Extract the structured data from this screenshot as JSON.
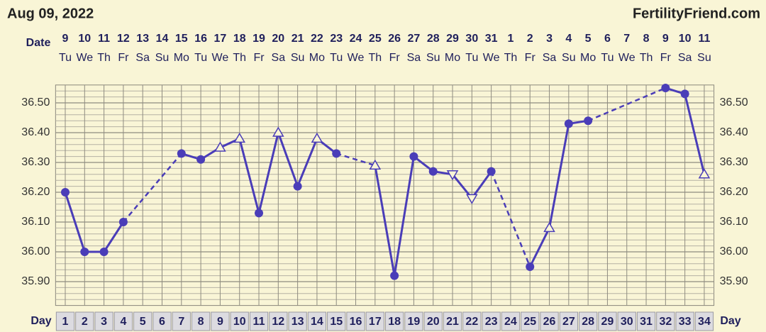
{
  "chart_data": {
    "type": "line",
    "title": "Aug 09, 2022",
    "site": "FertilityFriend.com",
    "date_label": "Date",
    "day_label": "Day",
    "dates": [
      "9",
      "10",
      "11",
      "12",
      "13",
      "14",
      "15",
      "16",
      "17",
      "18",
      "19",
      "20",
      "21",
      "22",
      "23",
      "24",
      "25",
      "26",
      "27",
      "28",
      "29",
      "30",
      "31",
      "1",
      "2",
      "3",
      "4",
      "5",
      "6",
      "7",
      "8",
      "9",
      "10",
      "11"
    ],
    "weekdays": [
      "Tu",
      "We",
      "Th",
      "Fr",
      "Sa",
      "Su",
      "Mo",
      "Tu",
      "We",
      "Th",
      "Fr",
      "Sa",
      "Su",
      "Mo",
      "Tu",
      "We",
      "Th",
      "Fr",
      "Sa",
      "Su",
      "Mo",
      "Tu",
      "We",
      "Th",
      "Fr",
      "Sa",
      "Su",
      "Mo",
      "Tu",
      "We",
      "Th",
      "Fr",
      "Sa",
      "Su"
    ],
    "x": [
      1,
      2,
      3,
      4,
      5,
      6,
      7,
      8,
      9,
      10,
      11,
      12,
      13,
      14,
      15,
      16,
      17,
      18,
      19,
      20,
      21,
      22,
      23,
      24,
      25,
      26,
      27,
      28,
      29,
      30,
      31,
      32,
      33,
      34
    ],
    "series": [
      {
        "color": "#4a3db8",
        "values": [
          36.2,
          36.0,
          36.0,
          36.1,
          null,
          null,
          36.33,
          36.31,
          36.35,
          36.38,
          36.13,
          36.4,
          36.22,
          36.38,
          36.33,
          null,
          36.29,
          35.92,
          36.32,
          36.27,
          36.26,
          36.18,
          36.27,
          null,
          35.95,
          36.08,
          36.43,
          36.44,
          null,
          null,
          null,
          36.55,
          36.53,
          36.26
        ],
        "markers": [
          "circle",
          "circle",
          "circle",
          "circle",
          null,
          null,
          "circle",
          "circle",
          "triangle",
          "triangle",
          "circle",
          "triangle",
          "circle",
          "triangle",
          "circle",
          null,
          "triangle",
          "circle",
          "circle",
          "circle",
          "triangle-down",
          "triangle-down",
          "circle",
          null,
          "circle",
          "triangle",
          "circle",
          "circle",
          null,
          null,
          null,
          "circle",
          "circle",
          "triangle"
        ]
      }
    ],
    "xlim": [
      0.5,
      34.5
    ],
    "ylim": [
      35.82,
      36.56
    ],
    "yticks": [
      {
        "value": 36.5,
        "label": "36.50"
      },
      {
        "value": 36.4,
        "label": "36.40"
      },
      {
        "value": 36.3,
        "label": "36.30"
      },
      {
        "value": 36.2,
        "label": "36.20"
      },
      {
        "value": 36.1,
        "label": "36.10"
      },
      {
        "value": 36.0,
        "label": "36.00"
      },
      {
        "value": 35.9,
        "label": "35.90"
      }
    ],
    "grid": true
  }
}
